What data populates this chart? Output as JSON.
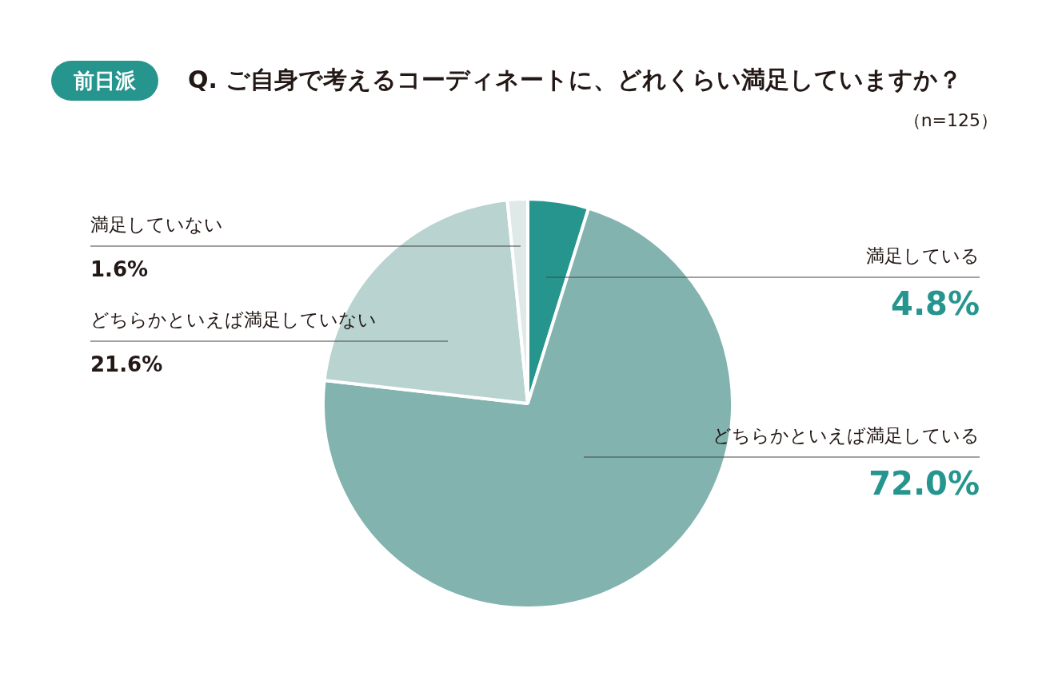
{
  "chart_data": {
    "type": "pie",
    "title": "Q. ご自身で考えるコーディネートに、どれくらい満足していますか？",
    "subtitle": "前日派",
    "annotations": [
      "（n=125）"
    ],
    "categories": [
      "満足している",
      "どちらかといえば満足している",
      "どちらかといえば満足していない",
      "満足していない"
    ],
    "values": [
      4.8,
      72.0,
      21.6,
      1.6
    ],
    "colors": [
      "#26958e",
      "#82b3af",
      "#b9d3d0",
      "#dfe9e8"
    ],
    "value_labels": [
      "4.8%",
      "72.0%",
      "21.6%",
      "1.6%"
    ],
    "legend": false
  }
}
